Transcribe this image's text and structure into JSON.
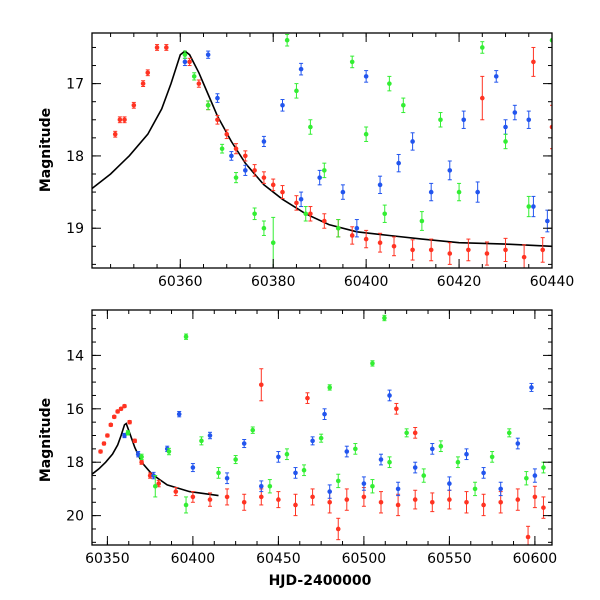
{
  "chart_data": [
    {
      "type": "scatter",
      "panel": "top",
      "title": "",
      "xlabel": "",
      "ylabel": "Magnitude",
      "xlim": [
        60341,
        60440
      ],
      "ylim": [
        19.55,
        16.3
      ],
      "y_inverted": true,
      "x_ticks": [
        60360,
        60380,
        60400,
        60420,
        60440
      ],
      "y_ticks": [
        17,
        18,
        19
      ],
      "x_tick_labels": [
        "60360",
        "60380",
        "60400",
        "60420",
        "60440"
      ],
      "y_tick_labels": [
        "17",
        "18",
        "19"
      ],
      "series": [
        {
          "color": "#ff3322",
          "x": [
            60346,
            60347,
            60348,
            60350,
            60352,
            60353,
            60355,
            60357,
            60362,
            60364,
            60366,
            60368,
            60370,
            60372,
            60374,
            60376,
            60378,
            60380,
            60382,
            60385,
            60388,
            60391,
            60394,
            60397,
            60400,
            60403,
            60406,
            60410,
            60414,
            60418,
            60422,
            60426,
            60430,
            60434,
            60438,
            60440,
            60436,
            60425
          ],
          "y": [
            17.7,
            17.5,
            17.5,
            17.3,
            17.0,
            16.85,
            16.5,
            16.5,
            16.7,
            17.0,
            17.3,
            17.5,
            17.7,
            17.9,
            18.0,
            18.2,
            18.3,
            18.4,
            18.5,
            18.65,
            18.8,
            18.9,
            19.0,
            19.1,
            19.15,
            19.2,
            19.25,
            19.3,
            19.3,
            19.35,
            19.3,
            19.35,
            19.3,
            19.4,
            19.3,
            17.6,
            16.7,
            17.2
          ],
          "err": [
            0.04,
            0.04,
            0.04,
            0.04,
            0.04,
            0.04,
            0.04,
            0.04,
            0.05,
            0.05,
            0.06,
            0.06,
            0.06,
            0.07,
            0.07,
            0.08,
            0.08,
            0.08,
            0.09,
            0.1,
            0.1,
            0.1,
            0.12,
            0.12,
            0.12,
            0.13,
            0.13,
            0.14,
            0.15,
            0.15,
            0.15,
            0.16,
            0.16,
            0.17,
            0.17,
            0.3,
            0.2,
            0.3
          ]
        },
        {
          "color": "#2255ee",
          "x": [
            60361,
            60366,
            60368,
            60371,
            60374,
            60378,
            60382,
            60386,
            60390,
            60395,
            60398,
            60403,
            60407,
            60410,
            60414,
            60418,
            60421,
            60424,
            60428,
            60432,
            60436,
            60439,
            60386,
            60400,
            60430,
            60435
          ],
          "y": [
            16.7,
            16.6,
            17.2,
            18.0,
            18.2,
            17.8,
            17.3,
            16.8,
            18.3,
            18.5,
            19.0,
            18.4,
            18.1,
            17.8,
            18.5,
            18.2,
            17.5,
            18.5,
            16.9,
            17.4,
            18.7,
            18.9,
            18.6,
            16.9,
            17.6,
            17.5
          ],
          "err": [
            0.05,
            0.05,
            0.06,
            0.06,
            0.07,
            0.07,
            0.08,
            0.08,
            0.1,
            0.1,
            0.12,
            0.12,
            0.12,
            0.12,
            0.12,
            0.13,
            0.12,
            0.14,
            0.08,
            0.1,
            0.14,
            0.15,
            0.1,
            0.08,
            0.1,
            0.12
          ]
        },
        {
          "color": "#33ee33",
          "x": [
            60361,
            60363,
            60366,
            60369,
            60372,
            60376,
            60380,
            60383,
            60385,
            60388,
            60391,
            60394,
            60397,
            60400,
            60404,
            60408,
            60412,
            60416,
            60420,
            60425,
            60430,
            60435,
            60440,
            60378,
            60387,
            60405
          ],
          "y": [
            16.6,
            16.9,
            17.3,
            17.9,
            18.3,
            18.8,
            19.2,
            16.4,
            17.1,
            17.6,
            18.2,
            19.0,
            16.7,
            17.7,
            18.8,
            17.3,
            18.9,
            17.5,
            18.5,
            16.5,
            17.8,
            18.7,
            16.4,
            19.0,
            18.8,
            17.0
          ],
          "err": [
            0.05,
            0.05,
            0.06,
            0.06,
            0.07,
            0.08,
            0.35,
            0.08,
            0.1,
            0.1,
            0.1,
            0.12,
            0.08,
            0.1,
            0.12,
            0.1,
            0.13,
            0.1,
            0.12,
            0.08,
            0.1,
            0.14,
            0.1,
            0.1,
            0.1,
            0.1
          ]
        }
      ],
      "model_curve": {
        "color": "#000000",
        "x": [
          60341,
          60345,
          60349,
          60353,
          60356,
          60358,
          60360,
          60361,
          60362,
          60364,
          60366,
          60368,
          60371,
          60374,
          60378,
          60382,
          60387,
          60392,
          60398,
          60405,
          60412,
          60420,
          60430,
          60440
        ],
        "y": [
          18.45,
          18.25,
          18.0,
          17.7,
          17.35,
          17.0,
          16.6,
          16.55,
          16.6,
          16.85,
          17.15,
          17.45,
          17.8,
          18.1,
          18.4,
          18.6,
          18.8,
          18.95,
          19.05,
          19.1,
          19.15,
          19.2,
          19.22,
          19.25
        ]
      }
    },
    {
      "type": "scatter",
      "panel": "bottom",
      "title": "",
      "xlabel": "HJD-2400000",
      "ylabel": "Magnitude",
      "xlim": [
        60341,
        60610
      ],
      "ylim": [
        21.1,
        12.3
      ],
      "y_inverted": true,
      "x_ticks": [
        60350,
        60400,
        60450,
        60500,
        60550,
        60600
      ],
      "y_ticks": [
        14,
        16,
        18,
        20
      ],
      "x_tick_labels": [
        "60350",
        "60400",
        "60450",
        "60500",
        "60550",
        "60600"
      ],
      "y_tick_labels": [
        "14",
        "16",
        "18",
        "20"
      ],
      "series": [
        {
          "color": "#ff3322",
          "x": [
            60346,
            60348,
            60350,
            60352,
            60354,
            60356,
            60358,
            60360,
            60363,
            60366,
            60370,
            60375,
            60380,
            60390,
            60400,
            60410,
            60420,
            60430,
            60440,
            60450,
            60460,
            60470,
            60480,
            60490,
            60500,
            60510,
            60520,
            60530,
            60540,
            60550,
            60560,
            60570,
            60580,
            60590,
            60600,
            60605,
            60440,
            60467,
            60519,
            60530,
            60485,
            60596
          ],
          "y": [
            17.6,
            17.3,
            17.0,
            16.6,
            16.3,
            16.1,
            16.0,
            15.9,
            16.5,
            17.2,
            18.0,
            18.5,
            18.8,
            19.1,
            19.3,
            19.4,
            19.3,
            19.5,
            19.3,
            19.4,
            19.6,
            19.3,
            19.5,
            19.4,
            19.3,
            19.5,
            19.6,
            19.4,
            19.5,
            19.4,
            19.5,
            19.6,
            19.5,
            19.4,
            19.3,
            19.7,
            15.1,
            15.6,
            16.0,
            16.9,
            20.5,
            20.8
          ],
          "err": [
            0.05,
            0.05,
            0.05,
            0.05,
            0.05,
            0.05,
            0.05,
            0.05,
            0.06,
            0.06,
            0.08,
            0.1,
            0.12,
            0.15,
            0.2,
            0.25,
            0.3,
            0.3,
            0.3,
            0.3,
            0.4,
            0.3,
            0.4,
            0.4,
            0.35,
            0.4,
            0.4,
            0.35,
            0.35,
            0.35,
            0.4,
            0.4,
            0.4,
            0.4,
            0.4,
            0.4,
            0.6,
            0.2,
            0.2,
            0.2,
            0.4,
            0.4
          ]
        },
        {
          "color": "#2255ee",
          "x": [
            60360,
            60368,
            60377,
            60385,
            60392,
            60400,
            60410,
            60420,
            60430,
            60440,
            60450,
            60460,
            60470,
            60480,
            60490,
            60500,
            60510,
            60520,
            60530,
            60540,
            60550,
            60560,
            60570,
            60580,
            60590,
            60600,
            60598,
            60477,
            60515
          ],
          "y": [
            17.0,
            17.7,
            18.5,
            17.5,
            16.2,
            18.2,
            17.0,
            18.6,
            17.3,
            18.9,
            17.8,
            18.4,
            17.2,
            19.1,
            17.6,
            18.8,
            17.9,
            19.0,
            18.2,
            17.5,
            18.8,
            17.7,
            18.4,
            19.0,
            17.3,
            18.5,
            15.2,
            16.2,
            15.5
          ],
          "err": [
            0.08,
            0.1,
            0.12,
            0.1,
            0.1,
            0.15,
            0.12,
            0.2,
            0.15,
            0.2,
            0.2,
            0.2,
            0.15,
            0.25,
            0.2,
            0.25,
            0.2,
            0.25,
            0.2,
            0.2,
            0.25,
            0.2,
            0.2,
            0.25,
            0.2,
            0.25,
            0.15,
            0.2,
            0.2
          ]
        },
        {
          "color": "#33ee33",
          "x": [
            60362,
            60370,
            60378,
            60386,
            60396,
            60405,
            60415,
            60425,
            60435,
            60445,
            60455,
            60465,
            60475,
            60485,
            60495,
            60505,
            60515,
            60525,
            60535,
            60545,
            60555,
            60565,
            60575,
            60585,
            60595,
            60605,
            60396,
            60512,
            60505,
            60480
          ],
          "y": [
            16.9,
            17.8,
            18.9,
            17.6,
            19.6,
            17.2,
            18.4,
            17.9,
            16.8,
            18.9,
            17.7,
            18.3,
            17.1,
            18.7,
            17.5,
            18.9,
            18.0,
            16.9,
            18.5,
            17.4,
            18.0,
            19.0,
            17.8,
            16.9,
            18.6,
            18.2,
            13.3,
            12.6,
            14.3,
            15.2
          ],
          "err": [
            0.08,
            0.1,
            0.4,
            0.12,
            0.3,
            0.15,
            0.2,
            0.15,
            0.12,
            0.25,
            0.2,
            0.2,
            0.15,
            0.25,
            0.2,
            0.25,
            0.2,
            0.15,
            0.25,
            0.2,
            0.2,
            0.25,
            0.2,
            0.15,
            0.25,
            0.2,
            0.1,
            0.1,
            0.1,
            0.1
          ]
        }
      ],
      "model_curve": {
        "color": "#000000",
        "x": [
          60341,
          60345,
          60349,
          60353,
          60356,
          60358,
          60360,
          60361,
          60363,
          60366,
          60370,
          60376,
          60385,
          60398,
          60415
        ],
        "y": [
          18.45,
          18.25,
          18.0,
          17.7,
          17.35,
          17.0,
          16.6,
          16.55,
          16.9,
          17.45,
          18.0,
          18.45,
          18.85,
          19.1,
          19.25
        ]
      }
    }
  ]
}
